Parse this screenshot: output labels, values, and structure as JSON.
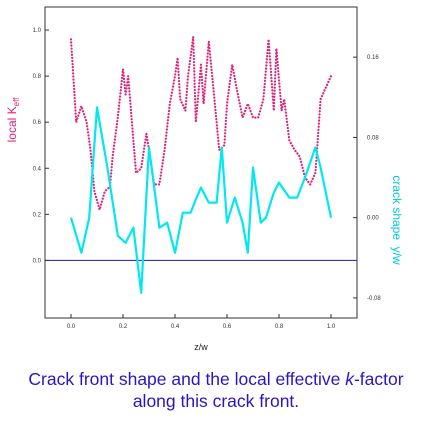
{
  "caption": {
    "line1_prefix": "Crack front shape and the local effective ",
    "line1_italic": "k",
    "line1_suffix": "-factor",
    "line2": "along this crack front."
  },
  "colors": {
    "keff": "#e0207a",
    "shape": "#00e8f0",
    "zero_line": "#1a1ab0",
    "axes": "#333333"
  },
  "chart_data": {
    "type": "line",
    "xlabel": "z/w",
    "ylabel_left": "local K_eff",
    "ylabel_left_main": "local K",
    "ylabel_left_sub": "eff",
    "ylabel_right": "crack shape  y/w",
    "xlim": [
      -0.1,
      1.1
    ],
    "ylim_left": [
      -0.25,
      1.1
    ],
    "ylim_right": [
      -0.1,
      0.21
    ],
    "x_ticks": [
      "0.0",
      "0.2",
      "0.4",
      "0.6",
      "0.8",
      "1.0"
    ],
    "y_left_ticks": [
      "0.0",
      "0.2",
      "0.4",
      "0.6",
      "0.8",
      "1.0"
    ],
    "y_right_ticks": [
      "-0.08",
      "0.00",
      "0.08",
      "0.16"
    ],
    "grid": false,
    "series": [
      {
        "axis": "left",
        "style": "dotted",
        "x": [
          0.0,
          0.02,
          0.04,
          0.06,
          0.075,
          0.09,
          0.11,
          0.13,
          0.15,
          0.16,
          0.18,
          0.2,
          0.21,
          0.22,
          0.24,
          0.25,
          0.27,
          0.29,
          0.3,
          0.32,
          0.34,
          0.36,
          0.38,
          0.4,
          0.41,
          0.42,
          0.44,
          0.45,
          0.47,
          0.48,
          0.5,
          0.51,
          0.53,
          0.55,
          0.57,
          0.59,
          0.6,
          0.62,
          0.64,
          0.66,
          0.68,
          0.7,
          0.72,
          0.74,
          0.76,
          0.78,
          0.79,
          0.81,
          0.82,
          0.84,
          0.86,
          0.88,
          0.9,
          0.92,
          0.94,
          0.96,
          1.0
        ],
        "values": [
          0.96,
          0.6,
          0.67,
          0.6,
          0.48,
          0.3,
          0.22,
          0.3,
          0.32,
          0.45,
          0.62,
          0.83,
          0.72,
          0.8,
          0.52,
          0.38,
          0.4,
          0.55,
          0.48,
          0.33,
          0.33,
          0.48,
          0.68,
          0.8,
          0.88,
          0.7,
          0.65,
          0.8,
          0.97,
          0.6,
          0.85,
          0.68,
          0.95,
          0.72,
          0.48,
          0.5,
          0.68,
          0.85,
          0.73,
          0.62,
          0.68,
          0.62,
          0.62,
          0.7,
          0.96,
          0.65,
          0.92,
          0.65,
          0.7,
          0.52,
          0.48,
          0.45,
          0.36,
          0.33,
          0.38,
          0.7,
          0.8
        ]
      },
      {
        "axis": "right",
        "style": "solid",
        "x": [
          0.0,
          0.04,
          0.07,
          0.1,
          0.14,
          0.18,
          0.21,
          0.24,
          0.27,
          0.3,
          0.34,
          0.37,
          0.4,
          0.43,
          0.46,
          0.48,
          0.5,
          0.53,
          0.56,
          0.58,
          0.6,
          0.63,
          0.66,
          0.68,
          0.7,
          0.73,
          0.75,
          0.78,
          0.8,
          0.84,
          0.87,
          0.9,
          0.94,
          0.96,
          1.0
        ],
        "values": [
          0.0,
          -0.035,
          0.0,
          0.11,
          0.05,
          -0.018,
          -0.025,
          -0.01,
          -0.075,
          0.07,
          -0.01,
          -0.005,
          -0.035,
          0.005,
          0.005,
          0.018,
          0.03,
          0.015,
          0.015,
          0.07,
          -0.005,
          0.02,
          -0.005,
          -0.035,
          0.05,
          -0.005,
          0.0,
          0.025,
          0.035,
          0.02,
          0.02,
          0.04,
          0.07,
          0.05,
          0.0
        ]
      }
    ]
  }
}
